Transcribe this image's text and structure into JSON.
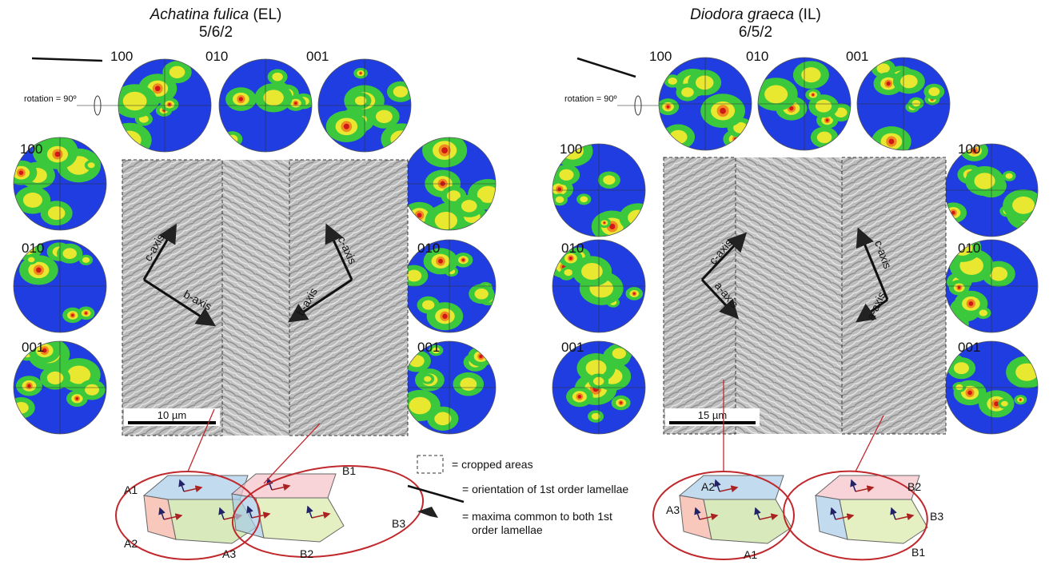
{
  "panels": [
    {
      "species": "Achatina fulica",
      "layer": "(EL)",
      "code": "5/6/2",
      "rotation": "rotation = 90º",
      "top_labels": [
        "100",
        "010",
        "001"
      ],
      "left_labels": [
        "100",
        "010",
        "001"
      ],
      "right_labels": [
        "010",
        "001"
      ],
      "axes": [
        "c-axis",
        "b-axis"
      ],
      "scale": "10 µm",
      "crystal_labels": [
        "A1",
        "A2",
        "A3",
        "B1",
        "B2",
        "B3"
      ]
    },
    {
      "species": "Diodora graeca",
      "layer": "(IL)",
      "code": "6/5/2",
      "rotation": "rotation = 90º",
      "top_labels": [
        "100",
        "010",
        "001"
      ],
      "left_labels": [
        "100",
        "010",
        "001"
      ],
      "right_labels": [
        "100",
        "010",
        "001"
      ],
      "axes": [
        "c-axis",
        "a-axis"
      ],
      "scale": "15 µm",
      "crystal_labels": [
        "A2",
        "A3",
        "A1",
        "B2",
        "B3",
        "B1"
      ]
    }
  ],
  "legend": [
    "= cropped areas",
    "= orientation of 1st order lamellae",
    "= maxima common to both 1st",
    "order lamellae"
  ]
}
